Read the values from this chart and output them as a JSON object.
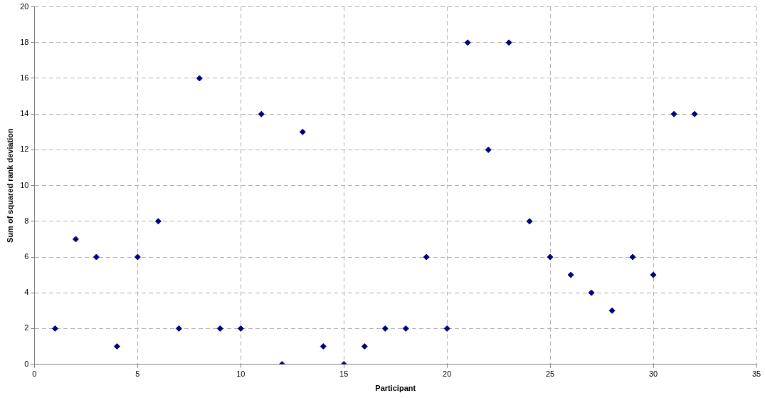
{
  "chart_data": {
    "type": "scatter",
    "xlabel": "Participant",
    "ylabel": "Sum of squared rank deviation",
    "x": [
      1,
      2,
      3,
      4,
      5,
      6,
      7,
      8,
      9,
      10,
      11,
      12,
      13,
      14,
      15,
      16,
      17,
      18,
      19,
      20,
      21,
      22,
      23,
      24,
      25,
      26,
      27,
      28,
      29,
      30,
      31,
      32
    ],
    "values": [
      2,
      7,
      6,
      1,
      6,
      8,
      2,
      16,
      2,
      2,
      14,
      0,
      13,
      1,
      0,
      1,
      2,
      2,
      6,
      2,
      18,
      12,
      18,
      8,
      6,
      5,
      4,
      3,
      6,
      5,
      14,
      14
    ],
    "color": "#000080",
    "marker": "diamond",
    "xlim": [
      0,
      35
    ],
    "xticks": [
      0,
      5,
      10,
      15,
      20,
      25,
      30,
      35
    ],
    "ylim": [
      0,
      20
    ],
    "yticks": [
      0,
      2,
      4,
      6,
      8,
      10,
      12,
      14,
      16,
      18,
      20
    ],
    "grid": true
  }
}
